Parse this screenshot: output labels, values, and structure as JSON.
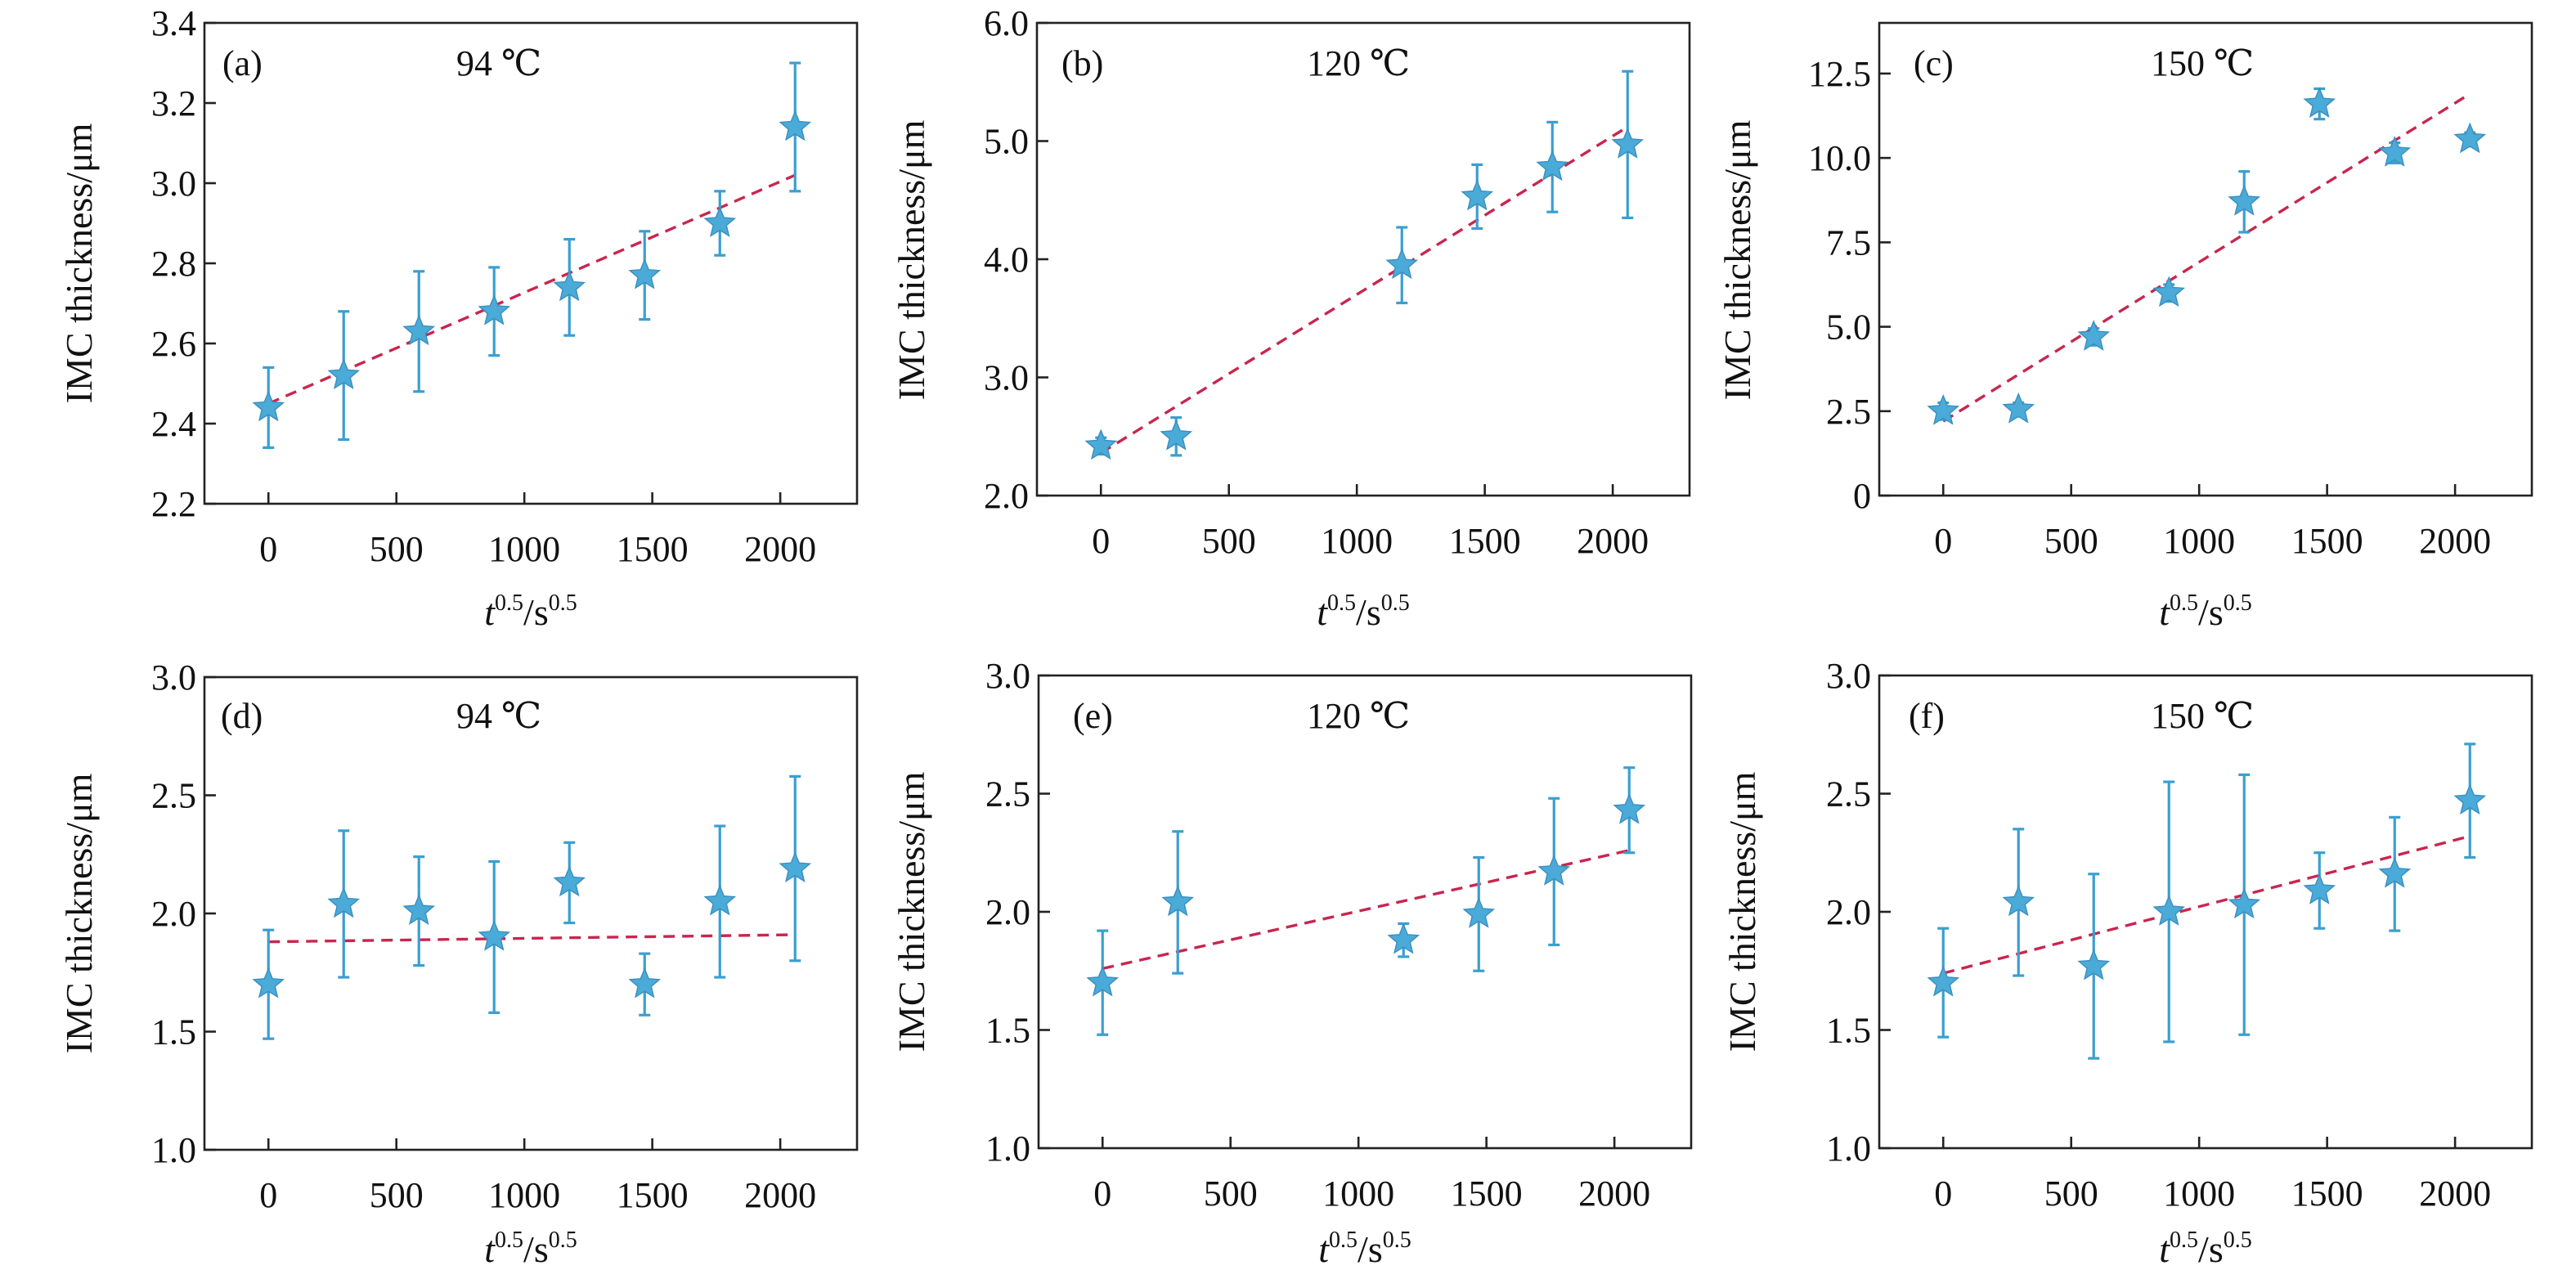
{
  "figure": {
    "ylabel": "IMC thickness/μm",
    "xlabel": {
      "base": "t",
      "base_exp": "0.5",
      "unit": "/s",
      "unit_exp": "0.5"
    }
  },
  "colors": {
    "points": "#4aaad8",
    "error_bars": "#3a9fd0",
    "fit_line": "#c8264f",
    "frame": "#222222"
  },
  "chart_data": [
    {
      "panel": "(a)",
      "temperature": "94 ℃",
      "type": "scatter",
      "xlim": [
        -250,
        2300
      ],
      "ylim": [
        2.2,
        3.4
      ],
      "xticks": [
        0,
        500,
        1000,
        1500,
        2000
      ],
      "xtick_labels": [
        "0",
        "500",
        "1000",
        "1500",
        "2000"
      ],
      "yticks": [
        2.2,
        2.4,
        2.6,
        2.8,
        3.0,
        3.2,
        3.4
      ],
      "ytick_labels": [
        "2.2",
        "2.4",
        "2.6",
        "2.8",
        "3.0",
        "3.2",
        "3.4"
      ],
      "points": [
        {
          "x": 0,
          "y": 2.44,
          "err": 0.1
        },
        {
          "x": 294,
          "y": 2.52,
          "err": 0.16
        },
        {
          "x": 588,
          "y": 2.63,
          "err": 0.15
        },
        {
          "x": 882,
          "y": 2.68,
          "err": 0.11
        },
        {
          "x": 1176,
          "y": 2.74,
          "err": 0.12
        },
        {
          "x": 1470,
          "y": 2.77,
          "err": 0.11
        },
        {
          "x": 1764,
          "y": 2.9,
          "err": 0.08
        },
        {
          "x": 2058,
          "y": 3.14,
          "err": 0.16
        }
      ],
      "fit": {
        "x": [
          0,
          2058
        ],
        "y": [
          2.45,
          3.02
        ]
      }
    },
    {
      "panel": "(b)",
      "temperature": "120 ℃",
      "type": "scatter",
      "xlim": [
        -250,
        2300
      ],
      "ylim": [
        2.0,
        6.0
      ],
      "xticks": [
        0,
        500,
        1000,
        1500,
        2000
      ],
      "xtick_labels": [
        "0",
        "500",
        "1000",
        "1500",
        "2000"
      ],
      "yticks": [
        2.0,
        3.0,
        4.0,
        5.0,
        6.0
      ],
      "ytick_labels": [
        "2.0",
        "3.0",
        "4.0",
        "5.0",
        "6.0"
      ],
      "points": [
        {
          "x": 0,
          "y": 2.42,
          "err": 0.07
        },
        {
          "x": 294,
          "y": 2.5,
          "err": 0.16
        },
        {
          "x": 1176,
          "y": 3.95,
          "err": 0.32
        },
        {
          "x": 1470,
          "y": 4.53,
          "err": 0.27
        },
        {
          "x": 1764,
          "y": 4.78,
          "err": 0.38
        },
        {
          "x": 2058,
          "y": 4.97,
          "err": 0.62
        }
      ],
      "fit": {
        "x": [
          0,
          2058
        ],
        "y": [
          2.36,
          5.12
        ]
      }
    },
    {
      "panel": "(c)",
      "temperature": "150 ℃",
      "type": "scatter",
      "xlim": [
        -250,
        2300
      ],
      "ylim": [
        0,
        14
      ],
      "xticks": [
        0,
        500,
        1000,
        1500,
        2000
      ],
      "xtick_labels": [
        "0",
        "500",
        "1000",
        "1500",
        "2000"
      ],
      "yticks": [
        0,
        2.5,
        5.0,
        7.5,
        10.0,
        12.5
      ],
      "ytick_labels": [
        "0",
        "2.5",
        "5.0",
        "7.5",
        "10.0",
        "12.5"
      ],
      "points": [
        {
          "x": 0,
          "y": 2.5,
          "err": 0.25
        },
        {
          "x": 294,
          "y": 2.55,
          "err": 0.2
        },
        {
          "x": 588,
          "y": 4.7,
          "err": 0.25
        },
        {
          "x": 882,
          "y": 6.0,
          "err": 0.25
        },
        {
          "x": 1176,
          "y": 8.7,
          "err": 0.9
        },
        {
          "x": 1470,
          "y": 11.6,
          "err": 0.45
        },
        {
          "x": 1764,
          "y": 10.15,
          "err": 0.3
        },
        {
          "x": 2058,
          "y": 10.55,
          "err": 0.2
        }
      ],
      "fit": {
        "x": [
          0,
          2058
        ],
        "y": [
          2.2,
          11.9
        ]
      }
    },
    {
      "panel": "(d)",
      "temperature": "94 ℃",
      "type": "scatter",
      "xlim": [
        -250,
        2300
      ],
      "ylim": [
        1.0,
        3.0
      ],
      "xticks": [
        0,
        500,
        1000,
        1500,
        2000
      ],
      "xtick_labels": [
        "0",
        "500",
        "1000",
        "1500",
        "2000"
      ],
      "yticks": [
        1.0,
        1.5,
        2.0,
        2.5,
        3.0
      ],
      "ytick_labels": [
        "1.0",
        "1.5",
        "2.0",
        "2.5",
        "3.0"
      ],
      "points": [
        {
          "x": 0,
          "y": 1.7,
          "err": 0.23
        },
        {
          "x": 294,
          "y": 2.04,
          "err": 0.31
        },
        {
          "x": 588,
          "y": 2.01,
          "err": 0.23
        },
        {
          "x": 882,
          "y": 1.9,
          "err": 0.32
        },
        {
          "x": 1176,
          "y": 2.13,
          "err": 0.17
        },
        {
          "x": 1470,
          "y": 1.7,
          "err": 0.13
        },
        {
          "x": 1764,
          "y": 2.05,
          "err": 0.32
        },
        {
          "x": 2058,
          "y": 2.19,
          "err": 0.39
        }
      ],
      "fit": {
        "x": [
          0,
          2058
        ],
        "y": [
          1.88,
          1.91
        ]
      }
    },
    {
      "panel": "(e)",
      "temperature": "120 ℃",
      "type": "scatter",
      "xlim": [
        -250,
        2300
      ],
      "ylim": [
        1.0,
        3.0
      ],
      "xticks": [
        0,
        500,
        1000,
        1500,
        2000
      ],
      "xtick_labels": [
        "0",
        "500",
        "1000",
        "1500",
        "2000"
      ],
      "yticks": [
        1.0,
        1.5,
        2.0,
        2.5,
        3.0
      ],
      "ytick_labels": [
        "1.0",
        "1.5",
        "2.0",
        "2.5",
        "3.0"
      ],
      "points": [
        {
          "x": 0,
          "y": 1.7,
          "err": 0.22
        },
        {
          "x": 294,
          "y": 2.04,
          "err": 0.3
        },
        {
          "x": 1176,
          "y": 1.88,
          "err": 0.07
        },
        {
          "x": 1470,
          "y": 1.99,
          "err": 0.24
        },
        {
          "x": 1764,
          "y": 2.17,
          "err": 0.31
        },
        {
          "x": 2058,
          "y": 2.43,
          "err": 0.18
        }
      ],
      "fit": {
        "x": [
          0,
          2058
        ],
        "y": [
          1.76,
          2.26
        ]
      }
    },
    {
      "panel": "(f)",
      "temperature": "150 ℃",
      "type": "scatter",
      "xlim": [
        -250,
        2300
      ],
      "ylim": [
        1.0,
        3.0
      ],
      "xticks": [
        0,
        500,
        1000,
        1500,
        2000
      ],
      "xtick_labels": [
        "0",
        "500",
        "1000",
        "1500",
        "2000"
      ],
      "yticks": [
        1.0,
        1.5,
        2.0,
        2.5,
        3.0
      ],
      "ytick_labels": [
        "1.0",
        "1.5",
        "2.0",
        "2.5",
        "3.0"
      ],
      "points": [
        {
          "x": 0,
          "y": 1.7,
          "err": 0.23
        },
        {
          "x": 294,
          "y": 2.04,
          "err": 0.31
        },
        {
          "x": 588,
          "y": 1.77,
          "err": 0.39
        },
        {
          "x": 882,
          "y": 2.0,
          "err": 0.55
        },
        {
          "x": 1176,
          "y": 2.03,
          "err": 0.55
        },
        {
          "x": 1470,
          "y": 2.09,
          "err": 0.16
        },
        {
          "x": 1764,
          "y": 2.16,
          "err": 0.24
        },
        {
          "x": 2058,
          "y": 2.47,
          "err": 0.24
        }
      ],
      "fit": {
        "x": [
          0,
          2058
        ],
        "y": [
          1.74,
          2.32
        ]
      }
    }
  ]
}
